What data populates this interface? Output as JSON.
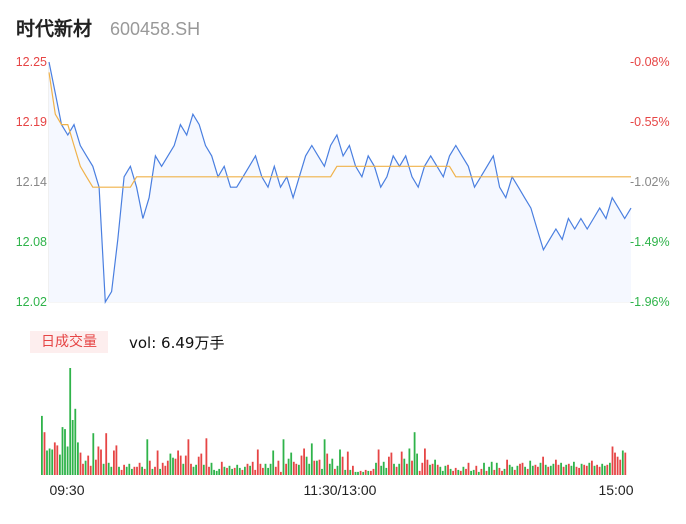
{
  "header": {
    "name": "时代新材",
    "code": "600458.SH"
  },
  "volume": {
    "tag": "日成交量",
    "label": "vol: 6.49万手"
  },
  "chart_data": [
    {
      "type": "line",
      "series": [
        {
          "role": "price",
          "color": "#4a7fe0"
        },
        {
          "role": "average",
          "color": "#f0b24a"
        }
      ],
      "ylim": [
        12.02,
        12.25
      ],
      "y_ticks_left": [
        "12.25",
        "12.19",
        "12.14",
        "12.08",
        "12.02"
      ],
      "y_ticks_right": [
        "-0.08%",
        "-0.55%",
        "-1.02%",
        "-1.49%",
        "-1.96%"
      ],
      "x_ticks": [
        "09:30",
        "11:30/13:00",
        "15:00"
      ],
      "price": [
        12.25,
        12.22,
        12.19,
        12.18,
        12.19,
        12.17,
        12.16,
        12.15,
        12.13,
        12.02,
        12.03,
        12.08,
        12.14,
        12.15,
        12.13,
        12.1,
        12.12,
        12.16,
        12.15,
        12.16,
        12.17,
        12.19,
        12.18,
        12.2,
        12.19,
        12.17,
        12.16,
        12.14,
        12.15,
        12.13,
        12.13,
        12.14,
        12.15,
        12.16,
        12.14,
        12.13,
        12.15,
        12.13,
        12.14,
        12.12,
        12.14,
        12.16,
        12.17,
        12.16,
        12.15,
        12.17,
        12.18,
        12.16,
        12.17,
        12.15,
        12.14,
        12.16,
        12.15,
        12.13,
        12.14,
        12.16,
        12.15,
        12.16,
        12.14,
        12.13,
        12.15,
        12.16,
        12.15,
        12.14,
        12.16,
        12.17,
        12.16,
        12.15,
        12.13,
        12.14,
        12.15,
        12.16,
        12.13,
        12.12,
        12.14,
        12.13,
        12.12,
        12.11,
        12.09,
        12.07,
        12.08,
        12.09,
        12.08,
        12.1,
        12.09,
        12.1,
        12.09,
        12.1,
        12.11,
        12.1,
        12.12,
        12.11,
        12.1,
        12.11
      ],
      "average": [
        12.24,
        12.2,
        12.19,
        12.19,
        12.17,
        12.15,
        12.14,
        12.13,
        12.13,
        12.13,
        12.13,
        12.13,
        12.13,
        12.13,
        12.14,
        12.14,
        12.14,
        12.14,
        12.14,
        12.14,
        12.14,
        12.14,
        12.14,
        12.14,
        12.14,
        12.14,
        12.14,
        12.14,
        12.14,
        12.14,
        12.14,
        12.14,
        12.14,
        12.14,
        12.14,
        12.14,
        12.14,
        12.14,
        12.14,
        12.14,
        12.14,
        12.14,
        12.14,
        12.14,
        12.14,
        12.14,
        12.15,
        12.15,
        12.15,
        12.15,
        12.15,
        12.15,
        12.15,
        12.15,
        12.15,
        12.15,
        12.15,
        12.15,
        12.15,
        12.15,
        12.15,
        12.15,
        12.15,
        12.15,
        12.15,
        12.14,
        12.14,
        12.14,
        12.14,
        12.14,
        12.14,
        12.14,
        12.14,
        12.14,
        12.14,
        12.14,
        12.14,
        12.14,
        12.14,
        12.14,
        12.14,
        12.14,
        12.14,
        12.14,
        12.14,
        12.14,
        12.14,
        12.14,
        12.14,
        12.14,
        12.14,
        12.14,
        12.14,
        12.14
      ]
    },
    {
      "type": "bar",
      "up_color": "#e64545",
      "down_color": "#2fb34a",
      "volumes": [
        58,
        42,
        24,
        26,
        25,
        32,
        29,
        20,
        47,
        45,
        28,
        105,
        54,
        65,
        32,
        22,
        11,
        14,
        19,
        9,
        41,
        15,
        28,
        25,
        11,
        41,
        12,
        8,
        24,
        29,
        8,
        5,
        10,
        8,
        11,
        6,
        8,
        8,
        12,
        8,
        6,
        35,
        14,
        6,
        8,
        24,
        6,
        12,
        9,
        14,
        21,
        17,
        16,
        24,
        19,
        11,
        19,
        35,
        11,
        8,
        10,
        18,
        21,
        10,
        36,
        8,
        12,
        5,
        4,
        6,
        13,
        8,
        7,
        9,
        6,
        7,
        10,
        7,
        5,
        8,
        11,
        9,
        13,
        5,
        25,
        11,
        7,
        11,
        7,
        11,
        24,
        8,
        14,
        3,
        35,
        11,
        16,
        22,
        13,
        11,
        10,
        19,
        26,
        18,
        11,
        31,
        14,
        14,
        15,
        6,
        35,
        21,
        11,
        16,
        6,
        9,
        25,
        18,
        5,
        23,
        5,
        9,
        3,
        3,
        4,
        3,
        5,
        4,
        4,
        6,
        12,
        25,
        9,
        13,
        7,
        18,
        22,
        11,
        8,
        11,
        23,
        16,
        11,
        26,
        14,
        42,
        21,
        4,
        12,
        26,
        15,
        10,
        11,
        15,
        10,
        8,
        4,
        9,
        10,
        6,
        4,
        7,
        5,
        4,
        8,
        6,
        12,
        4,
        5,
        9,
        3,
        6,
        12,
        4,
        8,
        13,
        5,
        12,
        7,
        4,
        6,
        15,
        10,
        8,
        5,
        9,
        11,
        12,
        8,
        6,
        14,
        9,
        10,
        8,
        12,
        18,
        10,
        8,
        9,
        11,
        15,
        10,
        12,
        8,
        10,
        11,
        9,
        13,
        8,
        7,
        11,
        10,
        9,
        12,
        14,
        9,
        10,
        8,
        11,
        9,
        10,
        12,
        28,
        22,
        18,
        15,
        24,
        22
      ],
      "up": [
        0,
        1,
        0,
        0,
        0,
        1,
        1,
        0,
        0,
        0,
        0,
        0,
        0,
        0,
        0,
        1,
        1,
        0,
        1,
        1,
        0,
        1,
        1,
        1,
        0,
        1,
        0,
        0,
        1,
        1,
        0,
        1,
        1,
        0,
        0,
        0,
        1,
        1,
        1,
        0,
        1,
        0,
        1,
        0,
        1,
        1,
        0,
        1,
        1,
        1,
        0,
        0,
        1,
        1,
        1,
        0,
        1,
        1,
        1,
        0,
        0,
        1,
        1,
        0,
        1,
        1,
        0,
        0,
        0,
        0,
        1,
        0,
        1,
        0,
        0,
        1,
        0,
        0,
        1,
        0,
        1,
        0,
        1,
        1,
        1,
        1,
        1,
        0,
        0,
        0,
        0,
        1,
        1,
        1,
        0,
        1,
        0,
        0,
        1,
        1,
        0,
        1,
        1,
        0,
        0,
        0,
        1,
        0,
        1,
        0,
        0,
        1,
        0,
        0,
        1,
        0,
        0,
        1,
        0,
        1,
        0,
        1,
        0,
        0,
        1,
        0,
        1,
        0,
        1,
        1,
        0,
        1,
        0,
        0,
        0,
        1,
        1,
        0,
        1,
        0,
        1,
        0,
        1,
        0,
        1,
        0,
        0,
        1,
        1,
        1,
        1,
        0,
        1,
        0,
        1,
        0,
        0,
        0,
        1,
        0,
        1,
        1,
        0,
        1,
        0,
        1,
        1,
        0,
        0,
        1,
        0,
        1,
        0,
        1,
        0,
        0,
        1,
        0,
        1,
        1,
        0,
        1,
        0,
        0,
        1,
        0,
        1,
        1,
        0,
        1,
        0,
        0,
        1,
        1,
        0,
        1,
        0,
        1,
        0,
        0,
        1,
        1,
        0,
        1,
        0,
        1,
        0,
        0,
        1,
        1,
        0,
        1,
        1,
        0,
        1,
        0,
        1,
        1,
        0,
        0,
        1,
        0,
        1,
        1,
        1,
        1,
        0,
        1
      ]
    }
  ]
}
